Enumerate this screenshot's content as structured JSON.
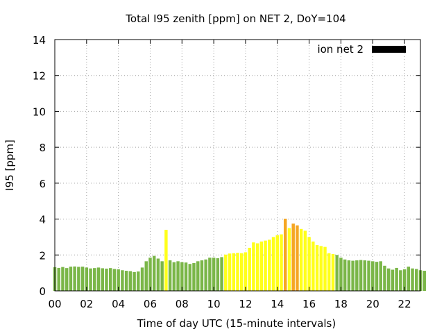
{
  "chart_data": {
    "type": "bar",
    "title": "Total I95 zenith [ppm] on NET 2, DoY=104",
    "xlabel": "Time of day UTC (15-minute intervals)",
    "ylabel": "I95 [ppm]",
    "xlim": [
      0,
      23
    ],
    "ylim": [
      0,
      14
    ],
    "x_ticks": [
      "00",
      "02",
      "04",
      "06",
      "08",
      "10",
      "12",
      "14",
      "16",
      "18",
      "20",
      "22"
    ],
    "y_ticks": [
      "0",
      "2",
      "4",
      "6",
      "8",
      "10",
      "12",
      "14"
    ],
    "grid": true,
    "legend_position": "top-right",
    "series": [
      {
        "name": "ion net 2",
        "legend_color": "#000000",
        "interval_hours": 0.25,
        "values": [
          1.32,
          1.28,
          1.33,
          1.27,
          1.35,
          1.36,
          1.34,
          1.35,
          1.3,
          1.25,
          1.27,
          1.3,
          1.26,
          1.24,
          1.27,
          1.22,
          1.2,
          1.15,
          1.12,
          1.1,
          1.05,
          1.08,
          1.3,
          1.65,
          1.85,
          1.95,
          1.8,
          1.65,
          3.4,
          1.7,
          1.6,
          1.65,
          1.6,
          1.58,
          1.5,
          1.55,
          1.65,
          1.7,
          1.75,
          1.85,
          1.85,
          1.82,
          1.88,
          2.02,
          2.08,
          2.1,
          2.12,
          2.1,
          2.15,
          2.4,
          2.7,
          2.65,
          2.75,
          2.8,
          2.85,
          3.0,
          3.1,
          3.15,
          4.02,
          3.5,
          3.75,
          3.65,
          3.45,
          3.35,
          3.0,
          2.75,
          2.55,
          2.5,
          2.45,
          2.1,
          2.05,
          2.0,
          1.85,
          1.75,
          1.7,
          1.68,
          1.7,
          1.72,
          1.7,
          1.68,
          1.65,
          1.62,
          1.65,
          1.4,
          1.25,
          1.18,
          1.28,
          1.15,
          1.2,
          1.35,
          1.25,
          1.22,
          1.15,
          1.12
        ]
      }
    ],
    "bar_color_thresholds": [
      {
        "max": 2.0,
        "color": "#7ab648"
      },
      {
        "max": 3.5,
        "color": "#ffff1a"
      },
      {
        "max": 5.0,
        "color": "#f5a623"
      }
    ],
    "colors": {
      "low": "#7ab648",
      "moderate": "#ffff1a",
      "elevated": "#f5a623",
      "grid": "#a0a0a0",
      "axis": "#000000"
    }
  }
}
